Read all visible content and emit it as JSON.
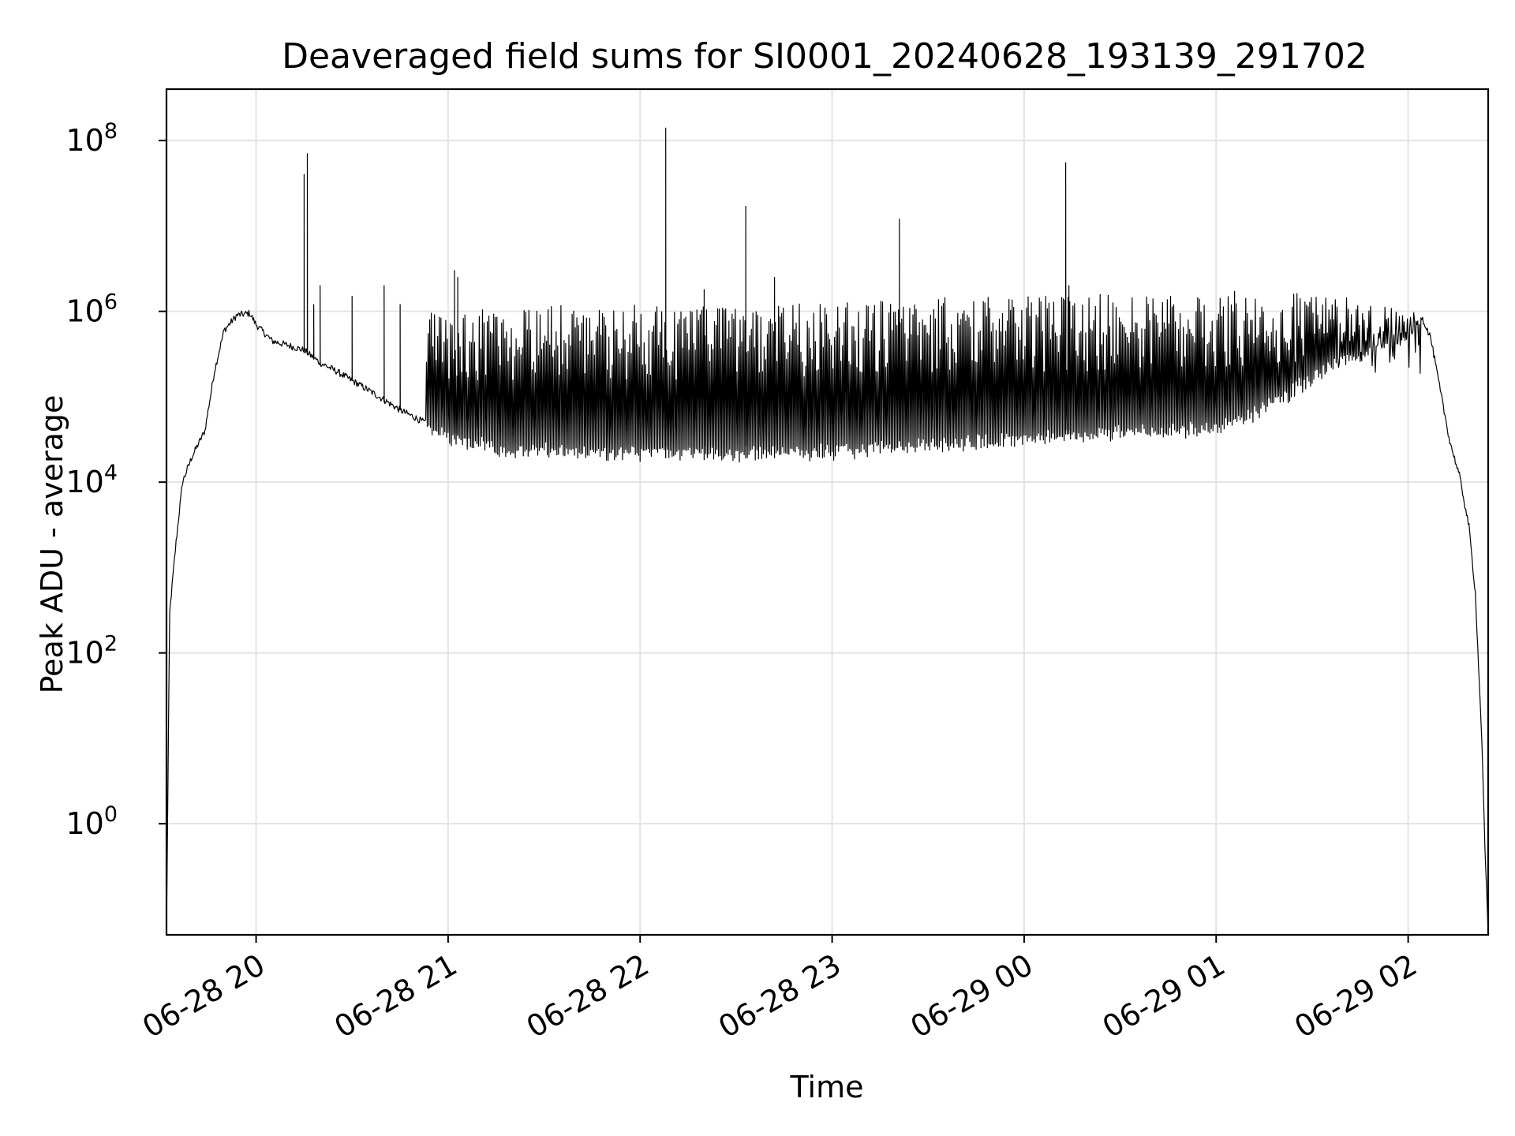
{
  "chart_data": {
    "type": "line",
    "title": "Deaveraged field sums for SI0001_20240628_193139_291702",
    "xlabel": "Time",
    "ylabel": "Peak ADU - average",
    "y_scale": "log",
    "ylim": [
      0.05,
      400000000
    ],
    "xlim": [
      "06-28 19:32",
      "06-29 02:25"
    ],
    "grid": true,
    "line_color": "#000000",
    "x_ticks": [
      {
        "value": "06-28 20:00",
        "label": "06-28 20"
      },
      {
        "value": "06-28 21:00",
        "label": "06-28 21"
      },
      {
        "value": "06-28 22:00",
        "label": "06-28 22"
      },
      {
        "value": "06-28 23:00",
        "label": "06-28 23"
      },
      {
        "value": "06-29 00:00",
        "label": "06-29 00"
      },
      {
        "value": "06-29 01:00",
        "label": "06-29 01"
      },
      {
        "value": "06-29 02:00",
        "label": "06-29 02"
      }
    ],
    "y_ticks": [
      {
        "value": 1,
        "base": "10",
        "exp": "0"
      },
      {
        "value": 100,
        "base": "10",
        "exp": "2"
      },
      {
        "value": 10000,
        "base": "10",
        "exp": "4"
      },
      {
        "value": 1000000,
        "base": "10",
        "exp": "6"
      },
      {
        "value": 100000000,
        "base": "10",
        "exp": "8"
      }
    ],
    "baseline_profile": [
      [
        "06-28 19:32",
        0.05
      ],
      [
        "06-28 19:33",
        300
      ],
      [
        "06-28 19:35",
        2000
      ],
      [
        "06-28 19:37",
        10000
      ],
      [
        "06-28 19:40",
        20000
      ],
      [
        "06-28 19:44",
        40000
      ],
      [
        "06-28 19:47",
        200000
      ],
      [
        "06-28 19:50",
        600000
      ],
      [
        "06-28 19:54",
        900000
      ],
      [
        "06-28 19:58",
        950000
      ],
      [
        "06-28 20:00",
        700000
      ],
      [
        "06-28 20:05",
        450000
      ],
      [
        "06-28 20:10",
        400000
      ],
      [
        "06-28 20:15",
        350000
      ],
      [
        "06-28 20:20",
        250000
      ],
      [
        "06-28 20:25",
        200000
      ],
      [
        "06-28 20:35",
        120000
      ],
      [
        "06-28 20:45",
        70000
      ],
      [
        "06-28 20:55",
        45000
      ],
      [
        "06-28 21:05",
        35000
      ],
      [
        "06-28 21:20",
        28000
      ],
      [
        "06-28 21:40",
        27000
      ],
      [
        "06-28 22:00",
        26000
      ],
      [
        "06-28 22:30",
        26000
      ],
      [
        "06-28 23:00",
        27000
      ],
      [
        "06-28 23:30",
        32000
      ],
      [
        "06-29 00:00",
        38000
      ],
      [
        "06-29 00:30",
        45000
      ],
      [
        "06-29 01:00",
        50000
      ],
      [
        "06-29 01:10",
        70000
      ],
      [
        "06-29 01:20",
        110000
      ],
      [
        "06-29 01:30",
        200000
      ],
      [
        "06-29 01:40",
        320000
      ],
      [
        "06-29 01:50",
        450000
      ],
      [
        "06-29 02:00",
        600000
      ],
      [
        "06-29 02:04",
        900000
      ],
      [
        "06-29 02:07",
        500000
      ],
      [
        "06-29 02:10",
        120000
      ],
      [
        "06-29 02:13",
        30000
      ],
      [
        "06-29 02:16",
        12000
      ],
      [
        "06-29 02:19",
        3000
      ],
      [
        "06-29 02:21",
        500
      ],
      [
        "06-29 02:23",
        10
      ],
      [
        "06-29 02:24",
        0.5
      ],
      [
        "06-29 02:25",
        0.05
      ]
    ],
    "peak_envelope": [
      [
        "06-28 20:50",
        1000000
      ],
      [
        "06-28 21:30",
        1200000
      ],
      [
        "06-28 22:00",
        1200000
      ],
      [
        "06-28 22:30",
        1100000
      ],
      [
        "06-28 23:00",
        1300000
      ],
      [
        "06-28 23:30",
        1500000
      ],
      [
        "06-29 00:00",
        1500000
      ],
      [
        "06-29 00:30",
        1600000
      ],
      [
        "06-29 01:00",
        1700000
      ],
      [
        "06-29 01:30",
        1800000
      ],
      [
        "06-29 02:00",
        1100000
      ]
    ],
    "oscillation_window": [
      "06-28 20:53",
      "06-29 02:04"
    ],
    "oscillation_spacing_minutes": 0.5,
    "spikes": [
      {
        "x": "06-28 20:15",
        "y": 40000000
      },
      {
        "x": "06-28 20:16",
        "y": 70000000
      },
      {
        "x": "06-28 20:18",
        "y": 1200000
      },
      {
        "x": "06-28 20:20",
        "y": 2000000
      },
      {
        "x": "06-28 20:30",
        "y": 1500000
      },
      {
        "x": "06-28 20:40",
        "y": 2000000
      },
      {
        "x": "06-28 20:45",
        "y": 1200000
      },
      {
        "x": "06-28 21:02",
        "y": 3000000
      },
      {
        "x": "06-28 21:03",
        "y": 2500000
      },
      {
        "x": "06-28 22:08",
        "y": 140000000
      },
      {
        "x": "06-28 22:20",
        "y": 1800000
      },
      {
        "x": "06-28 22:33",
        "y": 17000000
      },
      {
        "x": "06-28 22:42",
        "y": 2500000
      },
      {
        "x": "06-28 23:21",
        "y": 12000000
      },
      {
        "x": "06-29 00:13",
        "y": 55000000
      },
      {
        "x": "06-29 00:14",
        "y": 2000000
      }
    ]
  }
}
